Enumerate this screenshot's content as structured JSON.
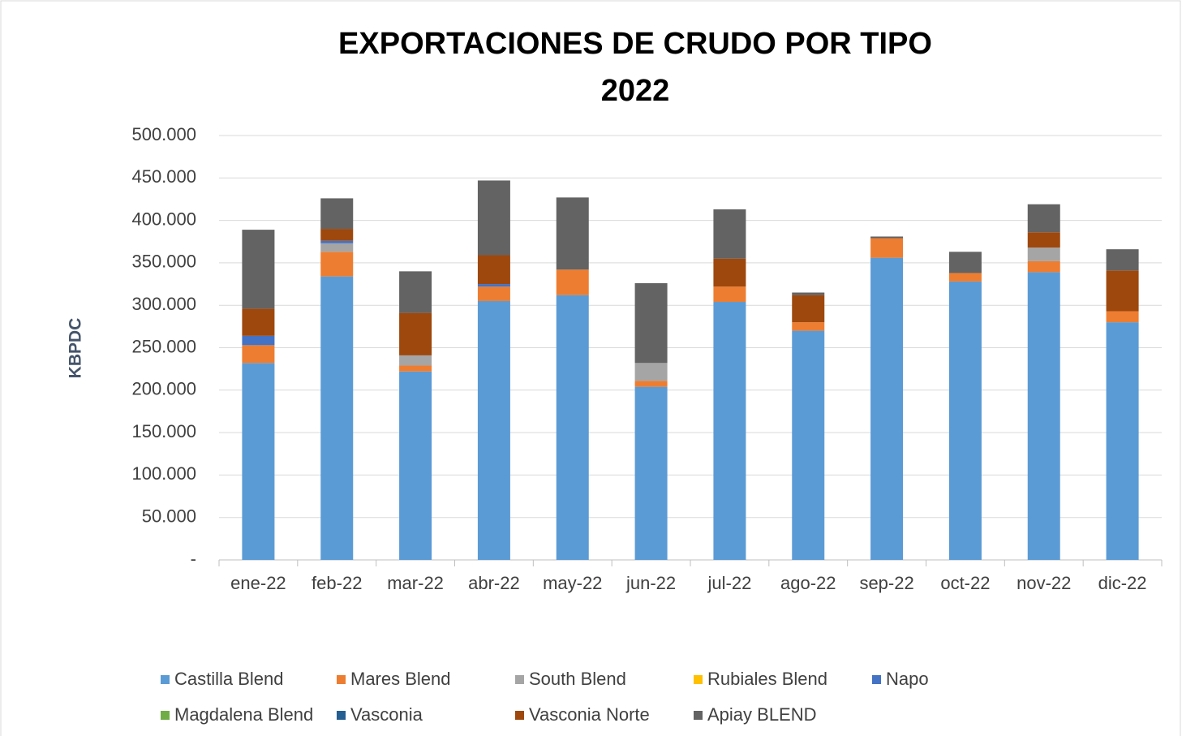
{
  "chart_data": {
    "type": "stacked_bar",
    "title": [
      "EXPORTACIONES DE CRUDO POR TIPO",
      "2022"
    ],
    "y_label": "KBPDC",
    "categories": [
      "ene-22",
      "feb-22",
      "mar-22",
      "abr-22",
      "may-22",
      "jun-22",
      "jul-22",
      "ago-22",
      "sep-22",
      "oct-22",
      "nov-22",
      "dic-22"
    ],
    "series": [
      {
        "name": "Castilla Blend",
        "color": "#5b9bd5",
        "values": [
          232000,
          334000,
          222000,
          305000,
          312000,
          204000,
          304000,
          270000,
          356000,
          328000,
          339000,
          280000
        ]
      },
      {
        "name": "Mares Blend",
        "color": "#ed7d31",
        "values": [
          21000,
          29000,
          7000,
          17000,
          30000,
          7000,
          18000,
          10000,
          23000,
          10000,
          13000,
          13000
        ]
      },
      {
        "name": "South Blend",
        "color": "#a5a5a5",
        "values": [
          0,
          10000,
          12000,
          0,
          0,
          21000,
          0,
          0,
          0,
          0,
          16000,
          0
        ]
      },
      {
        "name": "Rubiales Blend",
        "color": "#ffc000",
        "values": [
          0,
          0,
          0,
          0,
          0,
          0,
          0,
          0,
          0,
          0,
          0,
          0
        ]
      },
      {
        "name": "Napo",
        "color": "#4472c4",
        "values": [
          11000,
          3000,
          0,
          3000,
          0,
          0,
          0,
          0,
          0,
          0,
          0,
          0
        ]
      },
      {
        "name": "Magdalena Blend",
        "color": "#70ad47",
        "values": [
          0,
          0,
          0,
          0,
          0,
          0,
          0,
          0,
          0,
          0,
          0,
          0
        ]
      },
      {
        "name": "Vasconia",
        "color": "#255e91",
        "values": [
          0,
          0,
          0,
          0,
          0,
          0,
          0,
          0,
          0,
          0,
          0,
          0
        ]
      },
      {
        "name": "Vasconia Norte",
        "color": "#9e480e",
        "values": [
          32000,
          14000,
          50000,
          34000,
          0,
          0,
          33000,
          32000,
          0,
          0,
          18000,
          48000
        ]
      },
      {
        "name": "Apiay BLEND",
        "color": "#636363",
        "values": [
          93000,
          36000,
          49000,
          88000,
          85000,
          94000,
          58000,
          3000,
          2000,
          25000,
          33000,
          25000
        ]
      }
    ],
    "ylim": [
      0,
      500000
    ],
    "yticks": [
      {
        "value": 0,
        "label": "-"
      },
      {
        "value": 50000,
        "label": "50.000"
      },
      {
        "value": 100000,
        "label": "100.000"
      },
      {
        "value": 150000,
        "label": "150.000"
      },
      {
        "value": 200000,
        "label": "200.000"
      },
      {
        "value": 250000,
        "label": "250.000"
      },
      {
        "value": 300000,
        "label": "300.000"
      },
      {
        "value": 350000,
        "label": "350.000"
      },
      {
        "value": 400000,
        "label": "400.000"
      },
      {
        "value": 450000,
        "label": "450.000"
      },
      {
        "value": 500000,
        "label": "500.000"
      }
    ],
    "grid": true
  }
}
